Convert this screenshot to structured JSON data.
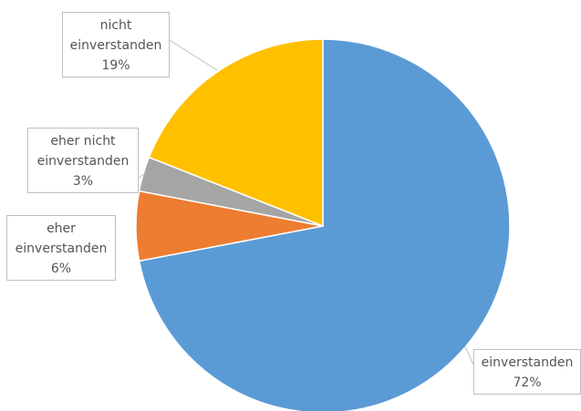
{
  "chart_data": {
    "type": "pie",
    "title": "",
    "legend": "none",
    "slices": [
      {
        "label_lines": [
          "einverstanden"
        ],
        "value": 72,
        "value_label": "72%",
        "color": "#5B9BD5"
      },
      {
        "label_lines": [
          "eher",
          "einverstanden"
        ],
        "value": 6,
        "value_label": "6%",
        "color": "#ED7D31"
      },
      {
        "label_lines": [
          "eher nicht",
          "einverstanden"
        ],
        "value": 3,
        "value_label": "3%",
        "color": "#A5A5A5"
      },
      {
        "label_lines": [
          "nicht",
          "einverstanden"
        ],
        "value": 19,
        "value_label": "19%",
        "color": "#FFC000"
      }
    ]
  }
}
